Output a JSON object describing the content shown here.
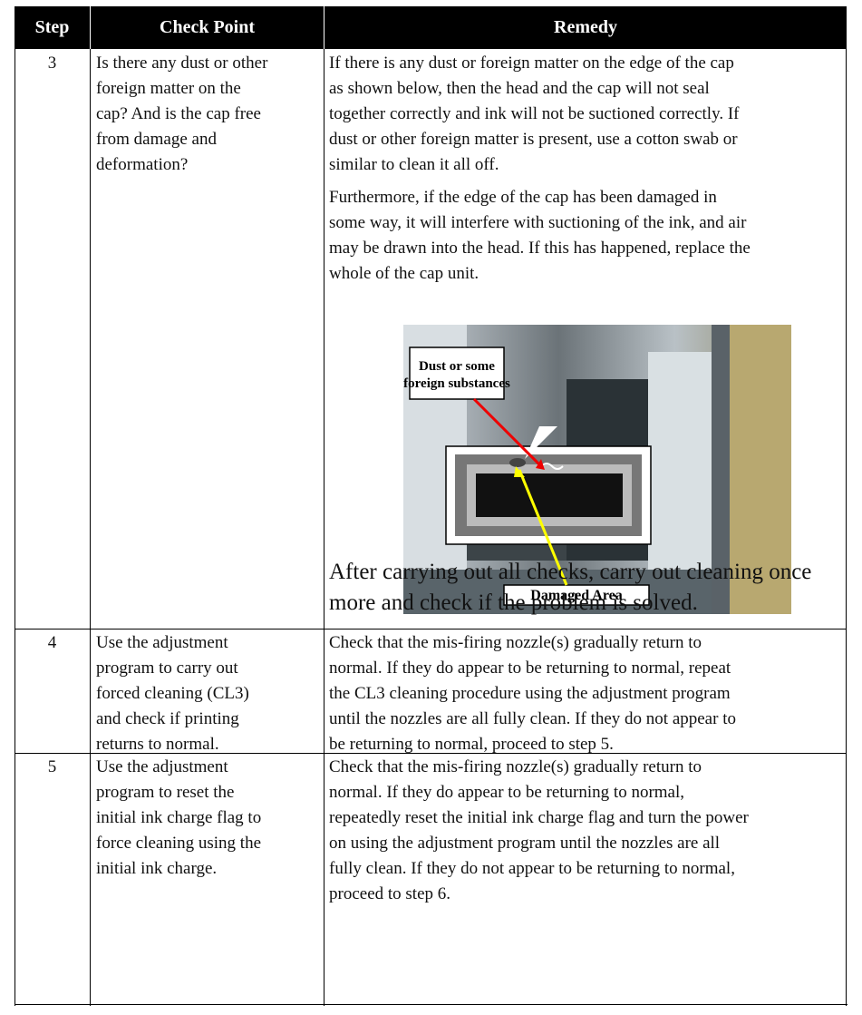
{
  "table": {
    "headers": [
      "Step",
      "Check Point",
      "Remedy"
    ],
    "rows": [
      {
        "step": "3",
        "check": [
          "Is there any dust or other",
          "foreign matter on the",
          "cap? And is the cap free",
          "from damage and",
          "deformation?"
        ],
        "remedy": [
          [
            "If there is any dust or foreign matter on the edge of the cap",
            "as shown below, then the head and the cap will not seal",
            "together correctly and ink will not be suctioned correctly. If",
            "dust or other foreign matter is present, use a cotton swab or",
            "similar to clean it all off."
          ],
          [
            "Furthermore, if the edge of the cap has been damaged in",
            "some way, it will interfere with suctioning of the ink, and air",
            "may be drawn into the head. If this has happened, replace the",
            "whole of the cap unit."
          ]
        ],
        "figure": {
          "callout": [
            "Dust or some",
            "foreign substances"
          ],
          "damaged": "Damaged Area"
        },
        "note": [
          "After carrying out all checks, carry out cleaning once",
          "more and check if the problem is solved."
        ]
      },
      {
        "step": "4",
        "check": [
          "Use the adjustment",
          "program to carry out",
          "forced cleaning (CL3)",
          "and check if printing",
          "returns to normal."
        ],
        "remedy": [
          [
            "Check that the mis-firing nozzle(s) gradually return to",
            "normal. If they do appear to be returning to normal, repeat",
            "the CL3 cleaning procedure using the adjustment program",
            "until the nozzles are all fully clean. If they do not appear to",
            "be returning to normal, proceed to step 5."
          ]
        ]
      },
      {
        "step": "5",
        "check": [
          "Use the adjustment",
          "program to reset the",
          "initial ink charge flag to",
          "force cleaning using the",
          "initial ink charge."
        ],
        "remedy": [
          [
            "Check that the mis-firing nozzle(s) gradually return to",
            "normal. If they do appear to be returning to normal,",
            "repeatedly reset the initial ink charge flag and turn the power",
            "on using the adjustment program until the nozzles are all",
            "fully clean. If they do not appear to be returning to normal,",
            "proceed to step 6."
          ]
        ]
      }
    ]
  }
}
